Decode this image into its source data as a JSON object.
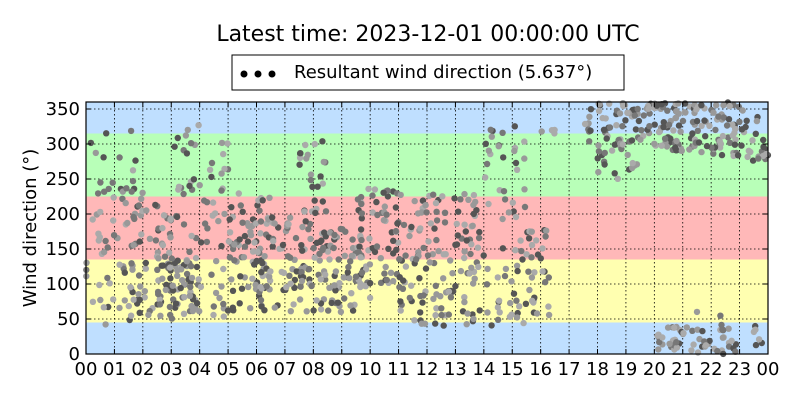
{
  "chart_data": {
    "type": "scatter",
    "title": "Latest time: 2023-12-01 00:00:00 UTC",
    "ylabel": "Wind direction (°)",
    "xlabel": "",
    "xlim": [
      0,
      24
    ],
    "ylim": [
      0,
      360
    ],
    "x_ticks": [
      "00",
      "01",
      "02",
      "03",
      "04",
      "05",
      "06",
      "07",
      "08",
      "09",
      "10",
      "11",
      "12",
      "13",
      "14",
      "15",
      "16",
      "17",
      "18",
      "19",
      "20",
      "21",
      "22",
      "23",
      "00"
    ],
    "y_ticks": [
      0,
      50,
      100,
      150,
      200,
      250,
      300,
      350
    ],
    "grid": true,
    "legend": {
      "placement": "top-center",
      "entries": [
        "Resultant wind direction (5.637°)"
      ]
    },
    "bands": [
      {
        "from": 0,
        "to": 45,
        "color": "#bfdfff"
      },
      {
        "from": 45,
        "to": 135,
        "color": "#ffffb0"
      },
      {
        "from": 135,
        "to": 225,
        "color": "#ffb8b8"
      },
      {
        "from": 225,
        "to": 315,
        "color": "#b8ffb8"
      },
      {
        "from": 315,
        "to": 360,
        "color": "#bfdfff"
      }
    ],
    "series": [
      {
        "name": "Resultant wind direction (5.637°)",
        "point_colors": [
          "#555555",
          "#777777",
          "#999999",
          "#aaaaaa"
        ],
        "clusters": [
          {
            "x": [
              0,
              2
            ],
            "y": [
              40,
              320
            ],
            "count": 70
          },
          {
            "x": [
              1.5,
              3
            ],
            "y": [
              50,
              230
            ],
            "count": 50
          },
          {
            "x": [
              2.5,
              4
            ],
            "y": [
              60,
              140
            ],
            "count": 60
          },
          {
            "x": [
              3,
              5
            ],
            "y": [
              50,
              330
            ],
            "count": 70
          },
          {
            "x": [
              5,
              6.5
            ],
            "y": [
              60,
              230
            ],
            "count": 70
          },
          {
            "x": [
              6,
              8
            ],
            "y": [
              60,
              200
            ],
            "count": 80
          },
          {
            "x": [
              7.5,
              8.5
            ],
            "y": [
              200,
              310
            ],
            "count": 25
          },
          {
            "x": [
              8,
              10
            ],
            "y": [
              60,
              180
            ],
            "count": 90
          },
          {
            "x": [
              9.5,
              11
            ],
            "y": [
              100,
              240
            ],
            "count": 60
          },
          {
            "x": [
              11,
              12.5
            ],
            "y": [
              40,
              230
            ],
            "count": 70
          },
          {
            "x": [
              12.5,
              14
            ],
            "y": [
              40,
              230
            ],
            "count": 70
          },
          {
            "x": [
              14,
              15.5
            ],
            "y": [
              40,
              330
            ],
            "count": 60
          },
          {
            "x": [
              15.5,
              16.3
            ],
            "y": [
              40,
              180
            ],
            "count": 30
          },
          {
            "x": [
              16,
              16.5
            ],
            "y": [
              310,
              330
            ],
            "count": 4
          },
          {
            "x": [
              17.5,
              19.5
            ],
            "y": [
              250,
              360
            ],
            "count": 70
          },
          {
            "x": [
              19.5,
              21.5
            ],
            "y": [
              290,
              360
            ],
            "count": 80
          },
          {
            "x": [
              21.5,
              23.2
            ],
            "y": [
              280,
              360
            ],
            "count": 60
          },
          {
            "x": [
              23.2,
              24
            ],
            "y": [
              270,
              340
            ],
            "count": 20
          },
          {
            "x": [
              20,
              24
            ],
            "y": [
              0,
              40
            ],
            "count": 60
          },
          {
            "x": [
              21.5,
              22.5
            ],
            "y": [
              40,
              70
            ],
            "count": 3
          }
        ]
      }
    ]
  }
}
